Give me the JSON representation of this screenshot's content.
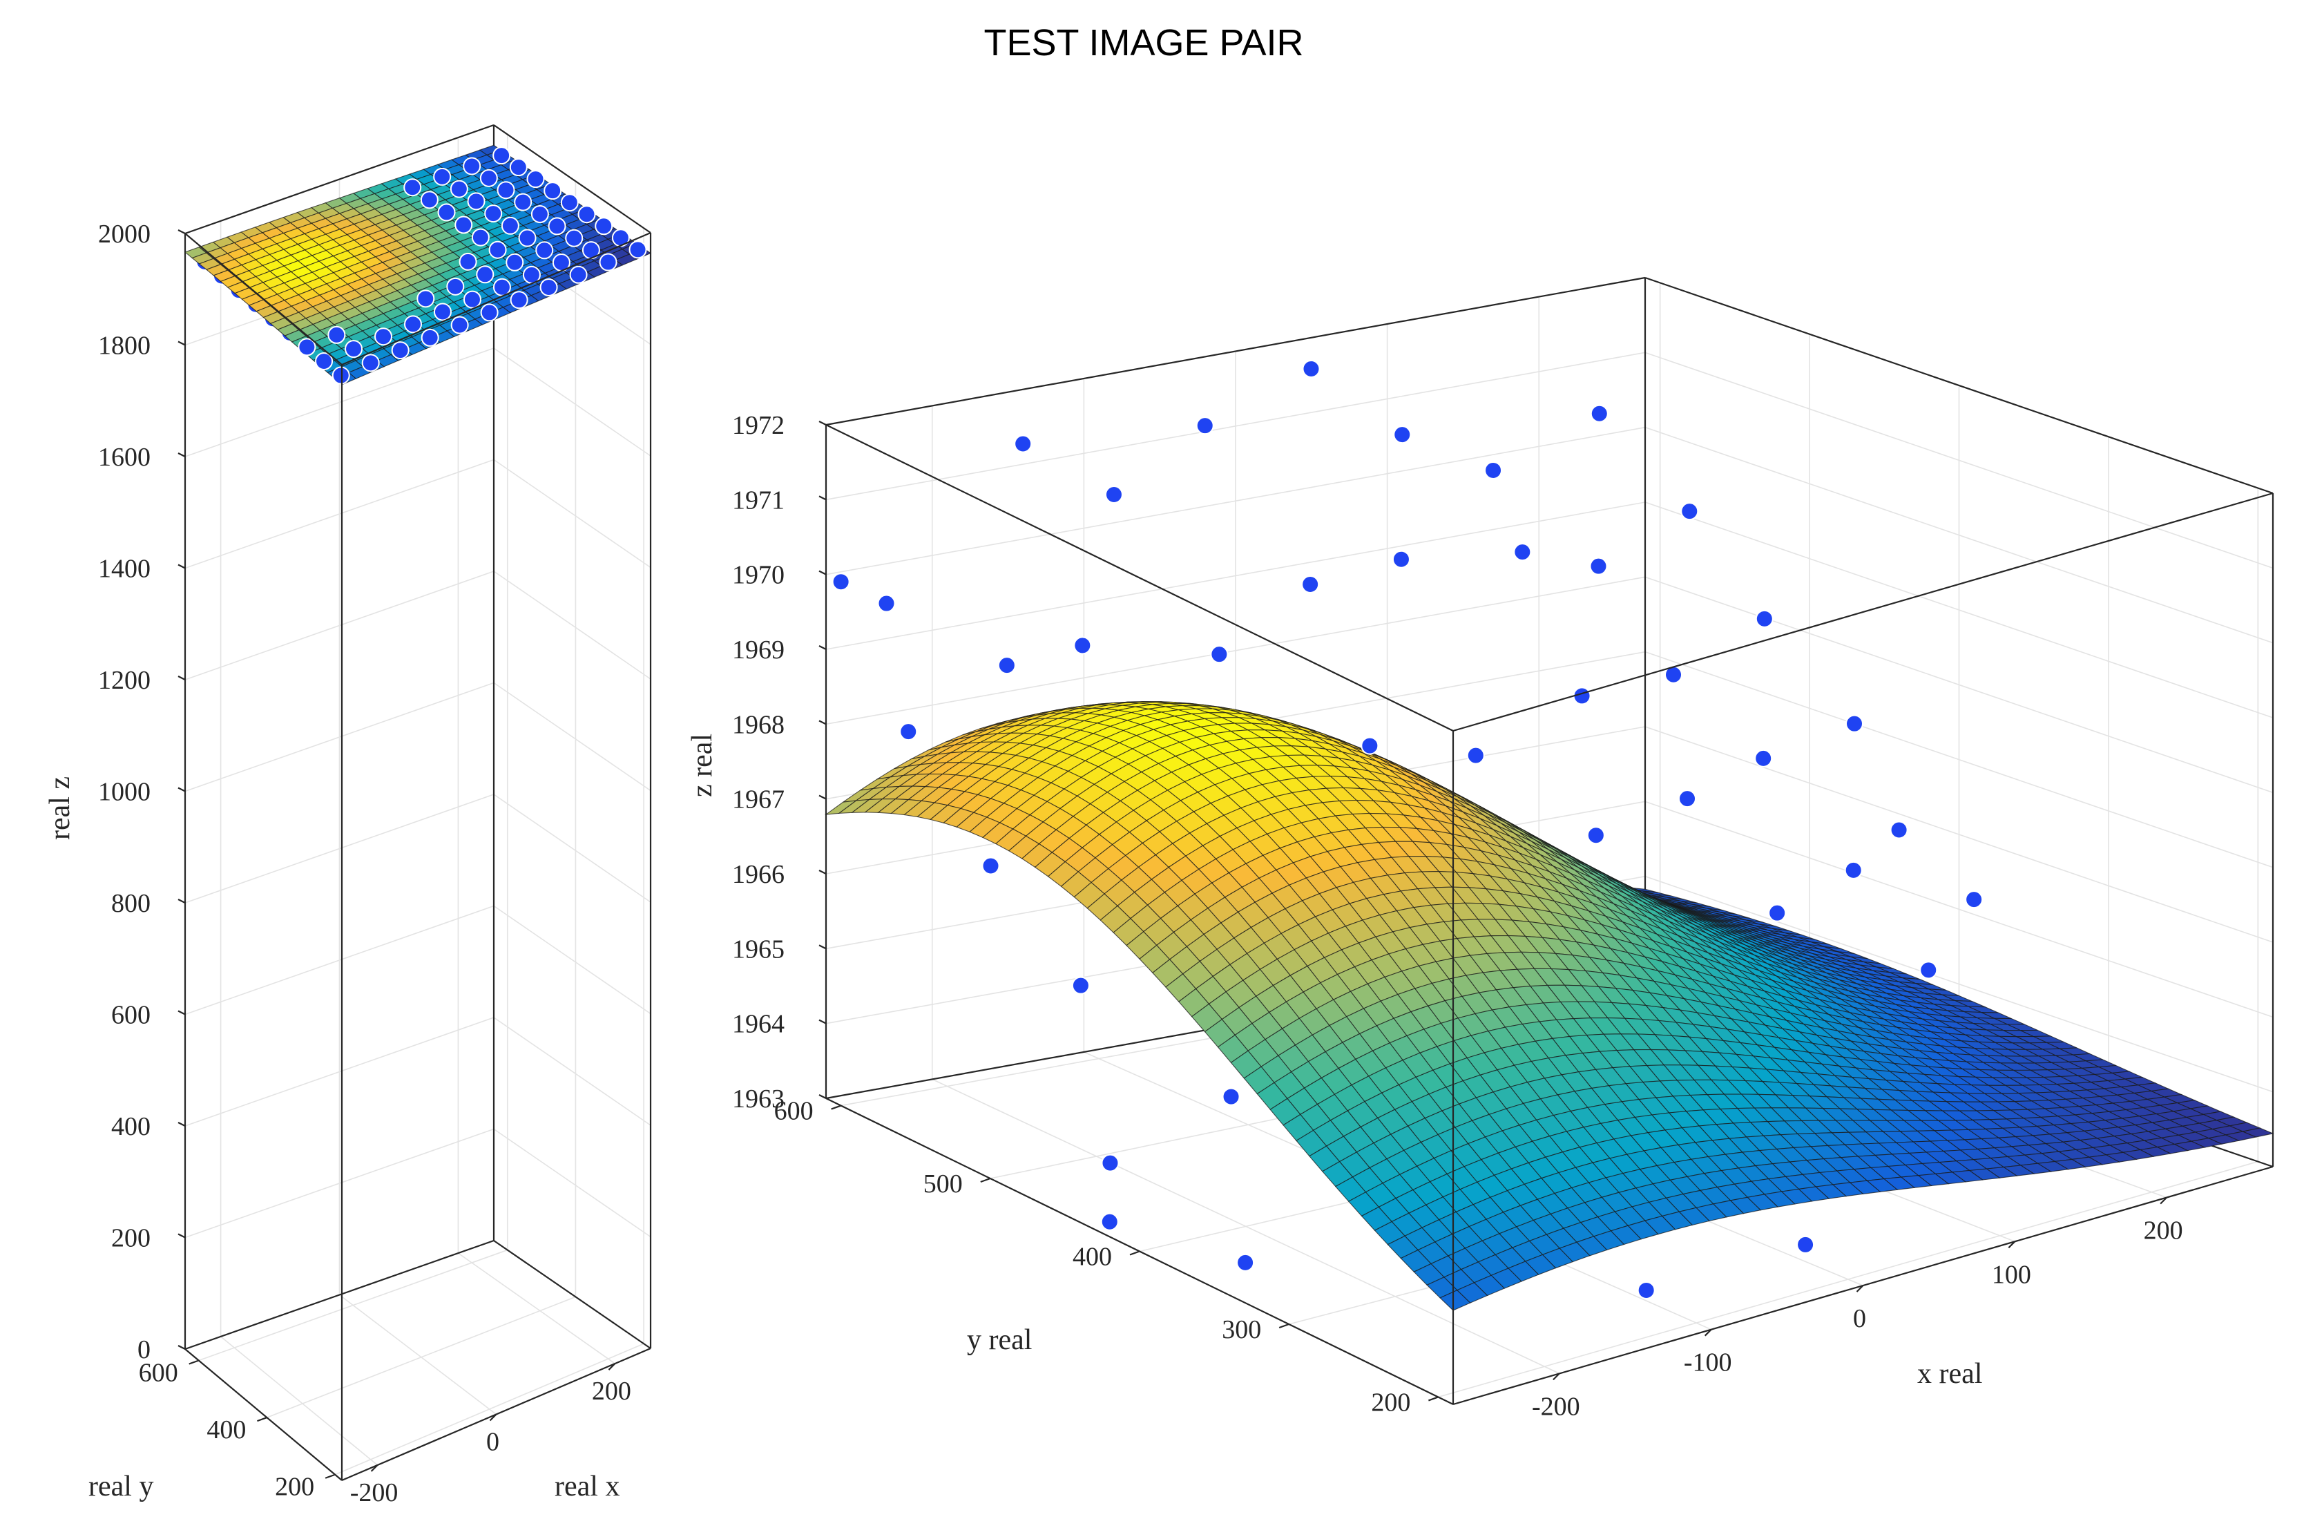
{
  "title": "TEST IMAGE PAIR",
  "chart_data": [
    {
      "type": "surface3d",
      "panel": "left",
      "xlabel": "real x",
      "ylabel": "real y",
      "zlabel": "real z",
      "xlim": [
        -260,
        260
      ],
      "ylim": [
        180,
        640
      ],
      "zlim": [
        0,
        2000
      ],
      "xticks": [
        -200,
        0,
        200
      ],
      "yticks": [
        200,
        400,
        600
      ],
      "zticks": [
        0,
        200,
        400,
        600,
        800,
        1000,
        1200,
        1400,
        1600,
        1800,
        2000
      ],
      "grid": true,
      "colormap": "parula",
      "surface": {
        "model": "gaussian-dome",
        "base_z": 1963.3,
        "amp": 5.2,
        "x0": -140,
        "y0": 500,
        "sx": 200,
        "sy": 180
      },
      "points": {
        "grid_x": [
          -250,
          -200,
          -150,
          -100,
          -50,
          0,
          50,
          100,
          150,
          200,
          250
        ],
        "grid_y": [
          200,
          250,
          300,
          350,
          400,
          450,
          500,
          550,
          600
        ],
        "z_approx": 1966
      },
      "marker_color": "#1f43f2"
    },
    {
      "type": "surface3d",
      "panel": "right",
      "xlabel": "x real",
      "ylabel": "y real",
      "zlabel": "z real",
      "xlim": [
        -270,
        270
      ],
      "ylim": [
        190,
        610
      ],
      "zlim": [
        1963,
        1972
      ],
      "xticks": [
        -200,
        -100,
        0,
        100,
        200
      ],
      "yticks": [
        200,
        300,
        400,
        500,
        600
      ],
      "zticks": [
        1963,
        1964,
        1965,
        1966,
        1967,
        1968,
        1969,
        1970,
        1971,
        1972
      ],
      "grid": true,
      "colormap": "parula",
      "surface": {
        "model": "gaussian-dome",
        "base_z": 1963.3,
        "amp": 5.2,
        "x0": -140,
        "y0": 500,
        "sx": 200,
        "sy": 180
      },
      "marker_color": "#1f43f2",
      "points": [
        [
          -270,
          600,
          1970.0
        ],
        [
          -260,
          565,
          1968.3
        ],
        [
          -250,
          520,
          1966.9
        ],
        [
          -230,
          480,
          1965.6
        ],
        [
          -250,
          440,
          1963.7
        ],
        [
          -270,
          420,
          1963.2
        ],
        [
          -240,
          600,
          1969.6
        ],
        [
          -200,
          560,
          1969.0
        ],
        [
          -200,
          500,
          1966.5
        ],
        [
          -170,
          460,
          1965.8
        ],
        [
          -190,
          420,
          1964.5
        ],
        [
          -220,
          380,
          1962.8
        ],
        [
          -150,
          600,
          1971.4
        ],
        [
          -160,
          550,
          1969.2
        ],
        [
          -120,
          520,
          1967.3
        ],
        [
          -140,
          470,
          1966.1
        ],
        [
          -100,
          430,
          1965.3
        ],
        [
          -130,
          400,
          1963.4
        ],
        [
          -90,
          600,
          1970.5
        ],
        [
          -60,
          560,
          1968.6
        ],
        [
          -80,
          500,
          1967.1
        ],
        [
          -50,
          450,
          1966.0
        ],
        [
          -40,
          410,
          1964.3
        ],
        [
          -60,
          370,
          1962.5
        ],
        [
          -30,
          600,
          1971.2
        ],
        [
          0,
          560,
          1969.3
        ],
        [
          -10,
          510,
          1967.6
        ],
        [
          10,
          460,
          1966.2
        ],
        [
          20,
          420,
          1964.9
        ],
        [
          0,
          380,
          1963.2
        ],
        [
          -5,
          330,
          1961.8
        ],
        [
          40,
          600,
          1971.7
        ],
        [
          60,
          560,
          1969.4
        ],
        [
          50,
          500,
          1967.3
        ],
        [
          80,
          450,
          1966.5
        ],
        [
          70,
          410,
          1965.2
        ],
        [
          100,
          370,
          1963.3
        ],
        [
          90,
          320,
          1962.0
        ],
        [
          100,
          600,
          1970.6
        ],
        [
          130,
          550,
          1969.3
        ],
        [
          120,
          500,
          1967.8
        ],
        [
          150,
          460,
          1966.6
        ],
        [
          160,
          410,
          1965.4
        ],
        [
          180,
          370,
          1963.5
        ],
        [
          170,
          330,
          1962.4
        ],
        [
          160,
          600,
          1969.9
        ],
        [
          190,
          560,
          1968.8
        ],
        [
          200,
          520,
          1967.6
        ],
        [
          210,
          470,
          1966.8
        ],
        [
          230,
          430,
          1965.5
        ],
        [
          240,
          390,
          1964.4
        ],
        [
          220,
          350,
          1963.8
        ],
        [
          230,
          600,
          1970.4
        ],
        [
          250,
          560,
          1969.3
        ],
        [
          260,
          520,
          1968.1
        ],
        [
          270,
          470,
          1967.0
        ],
        [
          260,
          430,
          1965.9
        ],
        [
          270,
          390,
          1965.2
        ]
      ]
    }
  ]
}
